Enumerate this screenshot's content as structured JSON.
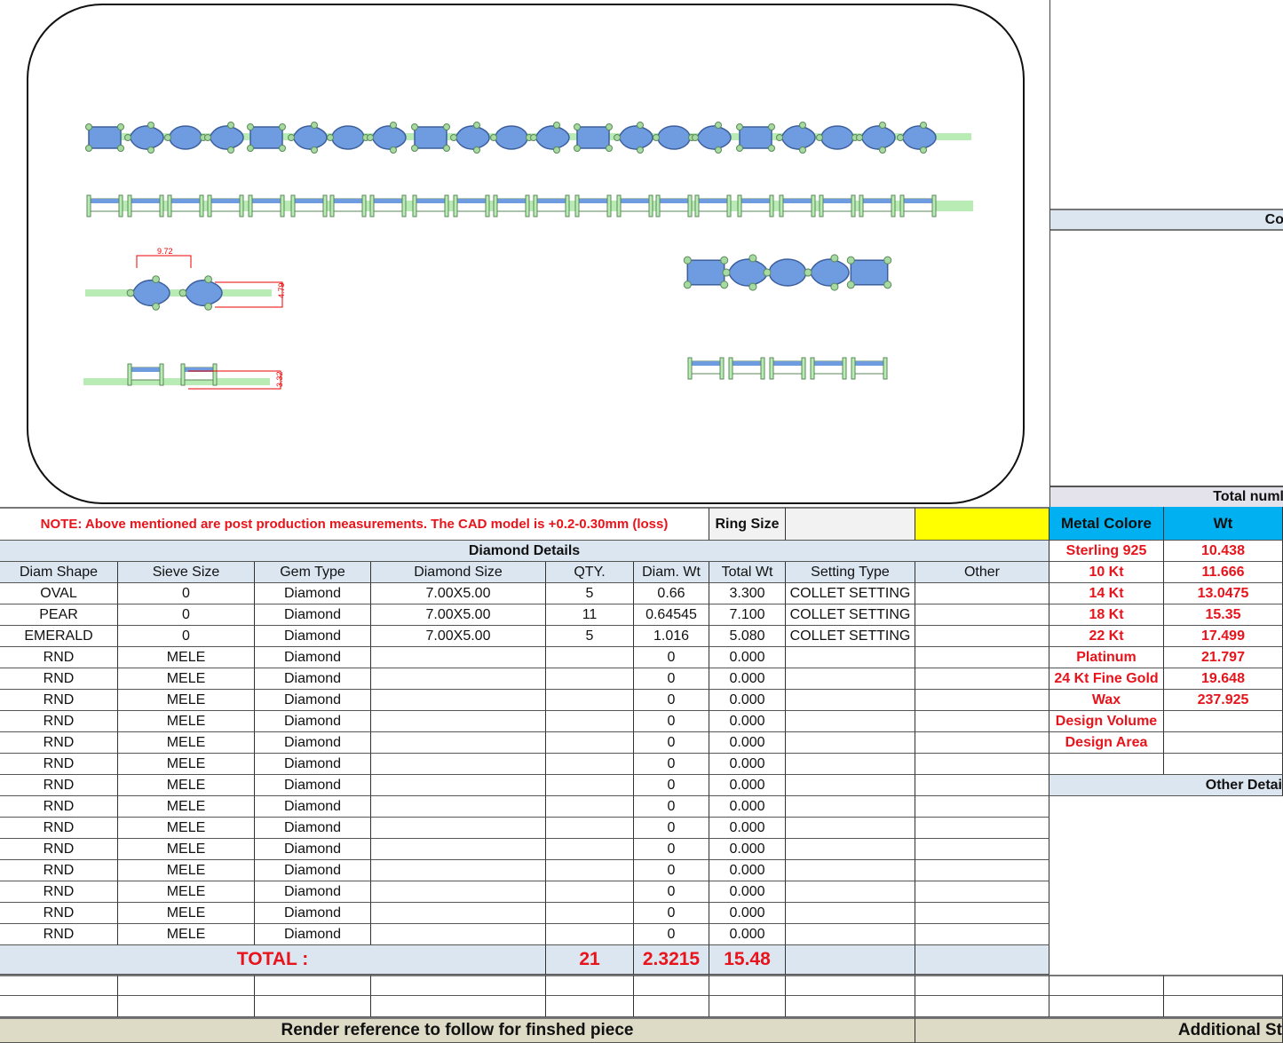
{
  "cad": {
    "dimension_length": "9.72",
    "dimension_width": "4.79",
    "dimension_height": "3.32",
    "gem_color": "#6f9be0",
    "metal_color": "#b9ecb5"
  },
  "right_panel": {
    "section_top": "Co",
    "section_total": "Total numl"
  },
  "note": "NOTE: Above mentioned are post production measurements. The CAD model is +0.2-0.30mm (loss)",
  "ring_size": {
    "label": "Ring Size",
    "value": ""
  },
  "highlight_color": "#ffff00",
  "diamond_details": {
    "title": "Diamond Details",
    "columns": [
      "Diam Shape",
      "Sieve Size",
      "Gem Type",
      "Diamond Size",
      "QTY.",
      "Diam. Wt",
      "Total Wt",
      "Setting Type",
      "Other"
    ],
    "rows": [
      [
        "OVAL",
        "0",
        "Diamond",
        "7.00X5.00",
        "5",
        "0.66",
        "3.300",
        "COLLET SETTING",
        ""
      ],
      [
        "PEAR",
        "0",
        "Diamond",
        "7.00X5.00",
        "11",
        "0.64545",
        "7.100",
        "COLLET SETTING",
        ""
      ],
      [
        "EMERALD",
        "0",
        "Diamond",
        "7.00X5.00",
        "5",
        "1.016",
        "5.080",
        "COLLET SETTING",
        ""
      ],
      [
        "RND",
        "MELE",
        "Diamond",
        "",
        "",
        "0",
        "0.000",
        "",
        ""
      ],
      [
        "RND",
        "MELE",
        "Diamond",
        "",
        "",
        "0",
        "0.000",
        "",
        ""
      ],
      [
        "RND",
        "MELE",
        "Diamond",
        "",
        "",
        "0",
        "0.000",
        "",
        ""
      ],
      [
        "RND",
        "MELE",
        "Diamond",
        "",
        "",
        "0",
        "0.000",
        "",
        ""
      ],
      [
        "RND",
        "MELE",
        "Diamond",
        "",
        "",
        "0",
        "0.000",
        "",
        ""
      ],
      [
        "RND",
        "MELE",
        "Diamond",
        "",
        "",
        "0",
        "0.000",
        "",
        ""
      ],
      [
        "RND",
        "MELE",
        "Diamond",
        "",
        "",
        "0",
        "0.000",
        "",
        ""
      ],
      [
        "RND",
        "MELE",
        "Diamond",
        "",
        "",
        "0",
        "0.000",
        "",
        ""
      ],
      [
        "RND",
        "MELE",
        "Diamond",
        "",
        "",
        "0",
        "0.000",
        "",
        ""
      ],
      [
        "RND",
        "MELE",
        "Diamond",
        "",
        "",
        "0",
        "0.000",
        "",
        ""
      ],
      [
        "RND",
        "MELE",
        "Diamond",
        "",
        "",
        "0",
        "0.000",
        "",
        ""
      ],
      [
        "RND",
        "MELE",
        "Diamond",
        "",
        "",
        "0",
        "0.000",
        "",
        ""
      ],
      [
        "RND",
        "MELE",
        "Diamond",
        "",
        "",
        "0",
        "0.000",
        "",
        ""
      ],
      [
        "RND",
        "MELE",
        "Diamond",
        "",
        "",
        "0",
        "0.000",
        "",
        ""
      ]
    ],
    "total": {
      "label": "TOTAL :",
      "qty": "21",
      "diam_wt": "2.3215",
      "total_wt": "15.48"
    }
  },
  "metal": {
    "header": [
      "Metal Colore",
      "Wt"
    ],
    "header_color": "#00b0f0",
    "rows": [
      [
        "Sterling 925",
        "10.438"
      ],
      [
        "10 Kt",
        "11.666"
      ],
      [
        "14 Kt",
        "13.0475"
      ],
      [
        "18 Kt",
        "15.35"
      ],
      [
        "22 Kt",
        "17.499"
      ],
      [
        "Platinum",
        "21.797"
      ],
      [
        "24 Kt Fine Gold",
        "19.648"
      ],
      [
        "Wax",
        "237.925"
      ],
      [
        "Design Volume",
        ""
      ],
      [
        "Design Area",
        ""
      ],
      [
        "",
        ""
      ]
    ],
    "other_details": "Other Detai"
  },
  "footer": {
    "render_reference": "Render reference to follow for finshed piece",
    "additional": "Additional St"
  }
}
